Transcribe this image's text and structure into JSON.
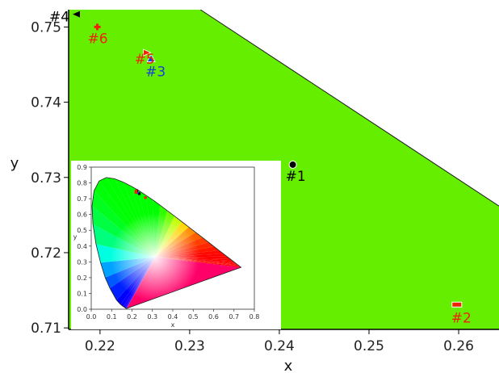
{
  "chart_data": [
    {
      "type": "scatter",
      "xlabel": "x",
      "ylabel": "y",
      "xlim": [
        0.2165,
        0.2645
      ],
      "ylim": [
        0.7098,
        0.7523
      ],
      "x_ticks": [
        "0.22",
        "0.23",
        "0.24",
        "0.25",
        "0.26"
      ],
      "y_ticks": [
        "0.71",
        "0.72",
        "0.73",
        "0.74",
        "0.75"
      ],
      "x_tick_values": [
        0.22,
        0.23,
        0.24,
        0.25,
        0.26
      ],
      "y_tick_values": [
        0.71,
        0.72,
        0.73,
        0.74,
        0.75
      ],
      "background_color": "#66ee00",
      "spectral_locus_points": [
        [
          0.2312,
          0.7523
        ],
        [
          0.2645,
          0.7262
        ]
      ],
      "points": [
        {
          "label": "#1",
          "x": 0.2415,
          "y": 0.7317,
          "color": "#000000",
          "marker": "circle"
        },
        {
          "label": "#2",
          "x": 0.2598,
          "y": 0.7131,
          "color": "#ee2200",
          "marker": "square"
        },
        {
          "label": "#3",
          "x": 0.2257,
          "y": 0.7458,
          "color": "#1a3fd6",
          "marker": "triangle"
        },
        {
          "label": "#4",
          "x": 0.2174,
          "y": 0.7517,
          "color": "#000000",
          "marker": "left-triangle"
        },
        {
          "label": "#5",
          "x": 0.2252,
          "y": 0.7466,
          "color": "#ee2200",
          "marker": "right-triangle"
        },
        {
          "label": "#6",
          "x": 0.2197,
          "y": 0.75,
          "color": "#ee2200",
          "marker": "cross"
        }
      ]
    },
    {
      "type": "scatter",
      "xlabel": "x",
      "ylabel": "y",
      "xlim": [
        0.0,
        0.8
      ],
      "ylim": [
        0.0,
        0.9
      ],
      "x_ticks": [
        "0.0",
        "0.1",
        "0.2",
        "0.3",
        "0.4",
        "0.5",
        "0.6",
        "0.7",
        "0.8"
      ],
      "y_ticks": [
        "0.0",
        "0.1",
        "0.2",
        "0.3",
        "0.4",
        "0.5",
        "0.6",
        "0.7",
        "0.8",
        "0.9"
      ],
      "x_tick_values": [
        0.0,
        0.1,
        0.2,
        0.3,
        0.4,
        0.5,
        0.6,
        0.7,
        0.8
      ],
      "y_tick_values": [
        0.0,
        0.1,
        0.2,
        0.3,
        0.4,
        0.5,
        0.6,
        0.7,
        0.8,
        0.9
      ],
      "spectral_locus": [
        [
          0.1741,
          0.005
        ],
        [
          0.1733,
          0.0048
        ],
        [
          0.1726,
          0.0048
        ],
        [
          0.1714,
          0.0051
        ],
        [
          0.1689,
          0.0069
        ],
        [
          0.1644,
          0.0109
        ],
        [
          0.1566,
          0.0177
        ],
        [
          0.144,
          0.0297
        ],
        [
          0.1241,
          0.0578
        ],
        [
          0.0913,
          0.1327
        ],
        [
          0.0687,
          0.2007
        ],
        [
          0.0454,
          0.295
        ],
        [
          0.0235,
          0.4127
        ],
        [
          0.0082,
          0.5384
        ],
        [
          0.0039,
          0.6548
        ],
        [
          0.0139,
          0.7502
        ],
        [
          0.0389,
          0.812
        ],
        [
          0.0743,
          0.8338
        ],
        [
          0.1142,
          0.8262
        ],
        [
          0.1547,
          0.8059
        ],
        [
          0.1929,
          0.7816
        ],
        [
          0.2296,
          0.7543
        ],
        [
          0.2658,
          0.7243
        ],
        [
          0.3016,
          0.6923
        ],
        [
          0.3373,
          0.6589
        ],
        [
          0.3731,
          0.6245
        ],
        [
          0.4087,
          0.5896
        ],
        [
          0.4441,
          0.5547
        ],
        [
          0.4788,
          0.5202
        ],
        [
          0.5125,
          0.4866
        ],
        [
          0.5448,
          0.4544
        ],
        [
          0.5752,
          0.4242
        ],
        [
          0.6029,
          0.3965
        ],
        [
          0.627,
          0.3725
        ],
        [
          0.6482,
          0.3514
        ],
        [
          0.6658,
          0.334
        ],
        [
          0.6801,
          0.3197
        ],
        [
          0.6915,
          0.3083
        ],
        [
          0.7006,
          0.2993
        ],
        [
          0.7079,
          0.292
        ],
        [
          0.714,
          0.2859
        ],
        [
          0.719,
          0.2809
        ],
        [
          0.723,
          0.277
        ],
        [
          0.726,
          0.274
        ],
        [
          0.7347,
          0.2653
        ]
      ],
      "cluster_points": [
        {
          "x": 0.2415,
          "y": 0.7317,
          "color": "#000000"
        },
        {
          "x": 0.2257,
          "y": 0.7458,
          "color": "#1a3fd6"
        },
        {
          "x": 0.2174,
          "y": 0.7517,
          "color": "#000000"
        },
        {
          "x": 0.2252,
          "y": 0.7466,
          "color": "#ee2200"
        },
        {
          "x": 0.2197,
          "y": 0.75,
          "color": "#ee2200"
        },
        {
          "x": 0.2598,
          "y": 0.7131,
          "color": "#ee2200"
        }
      ]
    }
  ]
}
